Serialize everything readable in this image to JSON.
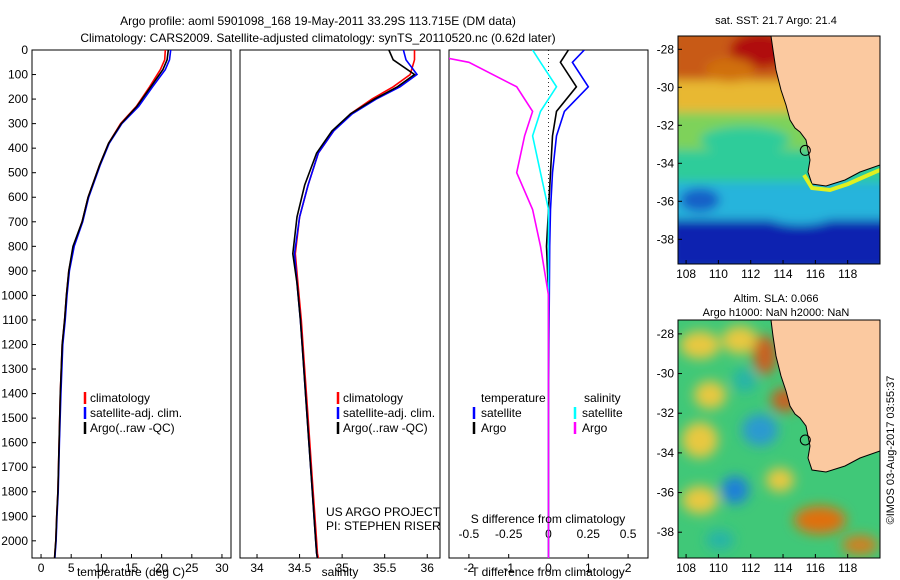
{
  "header": {
    "title_line1": "Argo profile: aoml 5901098_168 19-May-2011 33.29S 113.715E (DM data)",
    "title_line2": "Climatology: CARS2009. Satellite-adjusted climatology: synTS_20110520.nc (0.62d later)"
  },
  "colors": {
    "climatology": "#ff0000",
    "satellite": "#0000ff",
    "argo": "#000000",
    "salinity_satellite": "#00ffff",
    "salinity_argo": "#ff00ff",
    "land": "#fbc9a0"
  },
  "chart_data": [
    {
      "type": "line",
      "name": "temperature-profile",
      "xlabel": "temperature (deg C)",
      "xlim": [
        -1.5,
        31.5
      ],
      "ylim": [
        0,
        2070
      ],
      "y_inverted": true,
      "x_ticks": [
        0,
        5,
        10,
        15,
        20,
        25,
        30
      ],
      "y_ticks": [
        0,
        100,
        200,
        300,
        400,
        500,
        600,
        700,
        800,
        900,
        1000,
        1100,
        1200,
        1300,
        1400,
        1500,
        1600,
        1700,
        1800,
        1900,
        2000
      ],
      "legend": [
        "climatology",
        "satellite-adj. clim.",
        "Argo(..raw -QC)"
      ],
      "series": [
        {
          "key": "climatology",
          "color": "#ff0000",
          "x": [
            20.6,
            20.5,
            19.8,
            18.0,
            15.8,
            13.2,
            11.2,
            9.7,
            7.8,
            6.8,
            5.4,
            4.6,
            4.2,
            3.9,
            3.5,
            3.2,
            3.0,
            2.8,
            2.6,
            2.45,
            2.3,
            2.25
          ],
          "y": [
            0,
            40,
            80,
            150,
            230,
            300,
            380,
            470,
            600,
            700,
            800,
            900,
            1000,
            1100,
            1200,
            1400,
            1600,
            1800,
            1900,
            2000,
            2050,
            2070
          ]
        },
        {
          "key": "satellite",
          "color": "#0000ff",
          "x": [
            21.5,
            21.3,
            20.6,
            18.5,
            16.2,
            13.4,
            11.3,
            9.8,
            7.9,
            6.9,
            5.5,
            4.7,
            4.3,
            4.0,
            3.6,
            3.3,
            3.05,
            2.85,
            2.65,
            2.5,
            2.35,
            2.3
          ],
          "y": [
            0,
            40,
            80,
            150,
            230,
            300,
            380,
            470,
            600,
            700,
            800,
            900,
            1000,
            1100,
            1200,
            1400,
            1600,
            1800,
            1900,
            2000,
            2050,
            2070
          ]
        },
        {
          "key": "argo",
          "color": "#000000",
          "x": [
            21.1,
            20.9,
            20.2,
            18.2,
            15.9,
            13.3,
            11.2,
            9.7,
            7.8,
            6.8,
            5.3,
            4.6,
            4.2,
            3.9,
            3.5,
            3.2,
            3.0,
            2.8,
            2.6,
            2.45,
            2.3,
            2.25
          ],
          "y": [
            0,
            40,
            80,
            150,
            230,
            300,
            380,
            470,
            600,
            700,
            800,
            900,
            1000,
            1100,
            1200,
            1400,
            1600,
            1800,
            1900,
            2000,
            2050,
            2070
          ]
        }
      ]
    },
    {
      "type": "line",
      "name": "salinity-profile",
      "xlabel": "salinity",
      "xlim": [
        33.8,
        36.15
      ],
      "ylim": [
        0,
        2070
      ],
      "y_inverted": true,
      "x_ticks": [
        34,
        34.5,
        35,
        35.5,
        36
      ],
      "legend": [
        "climatology",
        "satellite-adj. clim.",
        "Argo(..raw -QC)"
      ],
      "annotations": [
        "US ARGO PROJECT",
        "PI: STEPHEN RISER"
      ],
      "series": [
        {
          "key": "climatology",
          "color": "#ff0000",
          "x": [
            35.85,
            35.85,
            35.8,
            35.6,
            35.35,
            35.1,
            34.9,
            34.72,
            34.6,
            34.5,
            34.45,
            34.48,
            34.52,
            34.55,
            34.58,
            34.62,
            34.65,
            34.68,
            34.7,
            34.71,
            34.72
          ],
          "y": [
            0,
            40,
            100,
            150,
            200,
            260,
            330,
            420,
            550,
            680,
            830,
            950,
            1100,
            1250,
            1400,
            1600,
            1750,
            1900,
            2000,
            2050,
            2070
          ]
        },
        {
          "key": "satellite",
          "color": "#0000ff",
          "x": [
            35.72,
            35.75,
            35.88,
            35.68,
            35.4,
            35.12,
            34.9,
            34.72,
            34.6,
            34.5,
            34.44,
            34.47,
            34.51,
            34.54,
            34.57,
            34.61,
            34.64,
            34.67,
            34.69,
            34.7,
            34.71
          ],
          "y": [
            0,
            40,
            100,
            150,
            200,
            260,
            330,
            420,
            550,
            680,
            830,
            950,
            1100,
            1250,
            1400,
            1600,
            1750,
            1900,
            2000,
            2050,
            2070
          ]
        },
        {
          "key": "argo",
          "color": "#000000",
          "x": [
            35.55,
            35.6,
            35.85,
            35.65,
            35.38,
            35.1,
            34.88,
            34.7,
            34.56,
            34.47,
            34.42,
            34.47,
            34.51,
            34.54,
            34.57,
            34.61,
            34.64,
            34.67,
            34.69,
            34.7,
            34.71
          ],
          "y": [
            0,
            40,
            100,
            150,
            200,
            260,
            330,
            420,
            550,
            680,
            830,
            950,
            1100,
            1250,
            1400,
            1600,
            1750,
            1900,
            2000,
            2050,
            2070
          ]
        }
      ]
    },
    {
      "type": "line",
      "name": "difference-profile",
      "xlabel": "T difference from climatology",
      "xlabel_top": "S difference from climatology",
      "xlim": [
        -2.5,
        2.5
      ],
      "ylim": [
        0,
        2070
      ],
      "y_inverted": true,
      "x_ticks": [
        -2,
        -1,
        0,
        1,
        2
      ],
      "x2_ticks": [
        -0.5,
        -0.25,
        0,
        0.25,
        0.5
      ],
      "legend_temperature": [
        "temperature",
        "satellite",
        "Argo"
      ],
      "legend_salinity": [
        "salinity",
        "satellite",
        "Argo"
      ],
      "series": [
        {
          "key": "t_satellite",
          "color": "#0000ff",
          "x": [
            0.9,
            0.6,
            1.0,
            0.4,
            0.2,
            0.1,
            0.05,
            0.03,
            0.02,
            0.01,
            0.0,
            0.0,
            0.0
          ],
          "y": [
            0,
            50,
            150,
            250,
            350,
            500,
            650,
            800,
            1000,
            1200,
            1500,
            1800,
            2070
          ]
        },
        {
          "key": "t_argo",
          "color": "#000000",
          "x": [
            0.5,
            0.3,
            0.7,
            0.2,
            0.1,
            0.05,
            0.0,
            -0.05,
            0.0,
            0.0,
            0.0,
            0.0,
            0.0
          ],
          "y": [
            0,
            50,
            150,
            250,
            350,
            500,
            650,
            800,
            1000,
            1200,
            1500,
            1800,
            2070
          ]
        },
        {
          "key": "s_satellite",
          "color": "#00ffff",
          "x": [
            -0.1,
            -0.05,
            0.05,
            -0.05,
            -0.1,
            -0.05,
            0.0,
            0.0,
            0.0,
            0.0,
            0.0,
            0.0,
            0.0
          ],
          "y": [
            0,
            50,
            150,
            250,
            350,
            500,
            650,
            800,
            1000,
            1200,
            1500,
            1800,
            2070
          ]
        },
        {
          "key": "s_argo",
          "color": "#ff00ff",
          "x": [
            -0.9,
            -0.5,
            -0.2,
            -0.1,
            -0.15,
            -0.2,
            -0.1,
            -0.05,
            0.0,
            0.0,
            0.0,
            0.0,
            0.0
          ],
          "y": [
            0,
            50,
            150,
            250,
            350,
            500,
            650,
            800,
            1000,
            1200,
            1500,
            1800,
            2070
          ]
        }
      ]
    },
    {
      "type": "heatmap",
      "name": "sst-map",
      "title": "sat. SST: 21.7  Argo: 21.4",
      "xlim": [
        107.5,
        120
      ],
      "ylim": [
        -39.3,
        -27.3
      ],
      "x_ticks": [
        108,
        110,
        112,
        114,
        116,
        118
      ],
      "y_ticks": [
        -28,
        -30,
        -32,
        -34,
        -36,
        -38
      ],
      "float_position": {
        "lon": 113.715,
        "lat": -33.29
      }
    },
    {
      "type": "heatmap",
      "name": "sla-map",
      "title_line1": "Altim. SLA: 0.066",
      "title_line2": "Argo h1000: NaN h2000: NaN",
      "xlim": [
        107.5,
        120
      ],
      "ylim": [
        -39.3,
        -27.3
      ],
      "x_ticks": [
        108,
        110,
        112,
        114,
        116,
        118
      ],
      "y_ticks": [
        -28,
        -30,
        -32,
        -34,
        -36,
        -38
      ],
      "float_position": {
        "lon": 113.715,
        "lat": -33.29
      }
    }
  ],
  "footer": {
    "credit": "©IMOS 03-Aug-2017 03:55:37"
  }
}
